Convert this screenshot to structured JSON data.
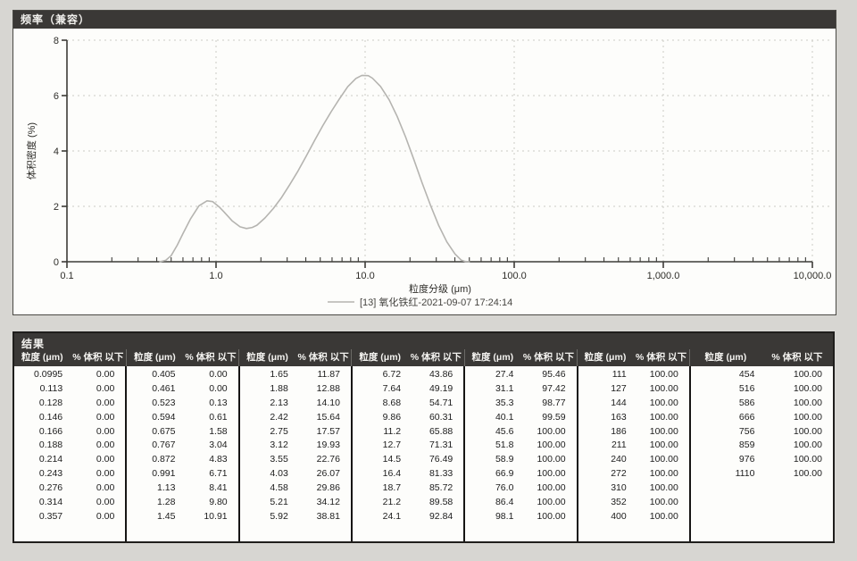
{
  "page": {
    "background": "#d7d6d2"
  },
  "chart_data": {
    "type": "line",
    "title": "频率（兼容）",
    "xlabel": "粒度分级 (μm)",
    "ylabel": "体积密度 (%)",
    "x_scale": "log",
    "xlim": [
      0.1,
      10000
    ],
    "ylim": [
      0,
      8
    ],
    "grid": "dotted",
    "legend_position": "bottom-center",
    "curve_color": "#b5b4b0",
    "y_tick_values": [
      0,
      2,
      4,
      6,
      8
    ],
    "y_tick_labels": [
      "0",
      "2",
      "4",
      "6",
      "8"
    ],
    "x_tick_values": [
      0.1,
      1,
      10,
      100,
      1000,
      10000
    ],
    "x_tick_labels": [
      "0.1",
      "1.0",
      "10.0",
      "100.0",
      "1,000.0",
      "10,000.0"
    ],
    "series": [
      {
        "name": "[13] 氧化铁红-2021-09-07 17:24:14",
        "points": [
          [
            0.42,
            0
          ],
          [
            0.46,
            0.05
          ],
          [
            0.5,
            0.22
          ],
          [
            0.55,
            0.6
          ],
          [
            0.6,
            1.02
          ],
          [
            0.675,
            1.55
          ],
          [
            0.767,
            2.02
          ],
          [
            0.87,
            2.2
          ],
          [
            0.95,
            2.17
          ],
          [
            1.05,
            1.98
          ],
          [
            1.13,
            1.8
          ],
          [
            1.28,
            1.48
          ],
          [
            1.45,
            1.26
          ],
          [
            1.6,
            1.2
          ],
          [
            1.75,
            1.24
          ],
          [
            1.88,
            1.32
          ],
          [
            2.13,
            1.58
          ],
          [
            2.42,
            1.92
          ],
          [
            2.75,
            2.32
          ],
          [
            3.12,
            2.78
          ],
          [
            3.55,
            3.28
          ],
          [
            4.03,
            3.82
          ],
          [
            4.58,
            4.38
          ],
          [
            5.21,
            4.92
          ],
          [
            5.92,
            5.42
          ],
          [
            6.72,
            5.88
          ],
          [
            7.64,
            6.32
          ],
          [
            8.68,
            6.62
          ],
          [
            9.5,
            6.73
          ],
          [
            10.5,
            6.72
          ],
          [
            11.2,
            6.63
          ],
          [
            12.7,
            6.33
          ],
          [
            14.5,
            5.85
          ],
          [
            16.4,
            5.25
          ],
          [
            18.7,
            4.5
          ],
          [
            21.2,
            3.7
          ],
          [
            24.1,
            2.85
          ],
          [
            27.4,
            2.05
          ],
          [
            31.1,
            1.32
          ],
          [
            35.3,
            0.72
          ],
          [
            40.1,
            0.28
          ],
          [
            44,
            0.06
          ],
          [
            47,
            0.01
          ],
          [
            50,
            0
          ]
        ]
      }
    ]
  },
  "results_panel": {
    "title": "结果",
    "size_header": "粒度 (μm)",
    "pct_header": "% 体积 以下",
    "groups": [
      {
        "rows": [
          [
            "0.0995",
            "0.00"
          ],
          [
            "0.113",
            "0.00"
          ],
          [
            "0.128",
            "0.00"
          ],
          [
            "0.146",
            "0.00"
          ],
          [
            "0.166",
            "0.00"
          ],
          [
            "0.188",
            "0.00"
          ],
          [
            "0.214",
            "0.00"
          ],
          [
            "0.243",
            "0.00"
          ],
          [
            "0.276",
            "0.00"
          ],
          [
            "0.314",
            "0.00"
          ],
          [
            "0.357",
            "0.00"
          ]
        ]
      },
      {
        "rows": [
          [
            "0.405",
            "0.00"
          ],
          [
            "0.461",
            "0.00"
          ],
          [
            "0.523",
            "0.13"
          ],
          [
            "0.594",
            "0.61"
          ],
          [
            "0.675",
            "1.58"
          ],
          [
            "0.767",
            "3.04"
          ],
          [
            "0.872",
            "4.83"
          ],
          [
            "0.991",
            "6.71"
          ],
          [
            "1.13",
            "8.41"
          ],
          [
            "1.28",
            "9.80"
          ],
          [
            "1.45",
            "10.91"
          ]
        ]
      },
      {
        "rows": [
          [
            "1.65",
            "11.87"
          ],
          [
            "1.88",
            "12.88"
          ],
          [
            "2.13",
            "14.10"
          ],
          [
            "2.42",
            "15.64"
          ],
          [
            "2.75",
            "17.57"
          ],
          [
            "3.12",
            "19.93"
          ],
          [
            "3.55",
            "22.76"
          ],
          [
            "4.03",
            "26.07"
          ],
          [
            "4.58",
            "29.86"
          ],
          [
            "5.21",
            "34.12"
          ],
          [
            "5.92",
            "38.81"
          ]
        ]
      },
      {
        "rows": [
          [
            "6.72",
            "43.86"
          ],
          [
            "7.64",
            "49.19"
          ],
          [
            "8.68",
            "54.71"
          ],
          [
            "9.86",
            "60.31"
          ],
          [
            "11.2",
            "65.88"
          ],
          [
            "12.7",
            "71.31"
          ],
          [
            "14.5",
            "76.49"
          ],
          [
            "16.4",
            "81.33"
          ],
          [
            "18.7",
            "85.72"
          ],
          [
            "21.2",
            "89.58"
          ],
          [
            "24.1",
            "92.84"
          ]
        ]
      },
      {
        "rows": [
          [
            "27.4",
            "95.46"
          ],
          [
            "31.1",
            "97.42"
          ],
          [
            "35.3",
            "98.77"
          ],
          [
            "40.1",
            "99.59"
          ],
          [
            "45.6",
            "100.00"
          ],
          [
            "51.8",
            "100.00"
          ],
          [
            "58.9",
            "100.00"
          ],
          [
            "66.9",
            "100.00"
          ],
          [
            "76.0",
            "100.00"
          ],
          [
            "86.4",
            "100.00"
          ],
          [
            "98.1",
            "100.00"
          ]
        ]
      },
      {
        "rows": [
          [
            "111",
            "100.00"
          ],
          [
            "127",
            "100.00"
          ],
          [
            "144",
            "100.00"
          ],
          [
            "163",
            "100.00"
          ],
          [
            "186",
            "100.00"
          ],
          [
            "211",
            "100.00"
          ],
          [
            "240",
            "100.00"
          ],
          [
            "272",
            "100.00"
          ],
          [
            "310",
            "100.00"
          ],
          [
            "352",
            "100.00"
          ],
          [
            "400",
            "100.00"
          ]
        ]
      },
      {
        "rows": [
          [
            "454",
            "100.00"
          ],
          [
            "516",
            "100.00"
          ],
          [
            "586",
            "100.00"
          ],
          [
            "666",
            "100.00"
          ],
          [
            "756",
            "100.00"
          ],
          [
            "859",
            "100.00"
          ],
          [
            "976",
            "100.00"
          ],
          [
            "1110",
            "100.00"
          ]
        ]
      }
    ]
  }
}
